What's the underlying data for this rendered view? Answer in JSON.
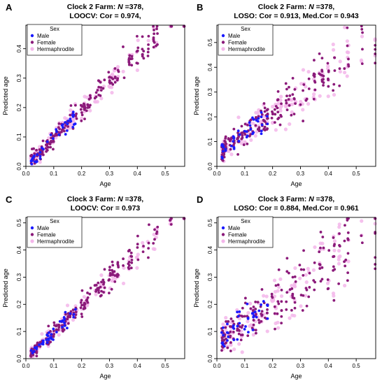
{
  "figure": {
    "colors": {
      "male": "#1a1aff",
      "female": "#8b1a7a",
      "hermaphrodite": "#f3b6ea",
      "axis": "#000000"
    }
  },
  "chart_data": [
    {
      "type": "scatter",
      "panel_letter": "A",
      "title_line1_prefix": "Clock 2 Farm: ",
      "title_n": "N",
      "title_line1_suffix": " =378,",
      "title_line2": "LOOCV: Cor = 0.974,",
      "xlabel": "Age",
      "ylabel": "Predicted age",
      "xlim": [
        0,
        0.57
      ],
      "ylim": [
        0,
        0.48
      ],
      "xticks": [
        0.0,
        0.1,
        0.2,
        0.3,
        0.4,
        0.5
      ],
      "yticks": [
        0.0,
        0.1,
        0.2,
        0.3,
        0.4
      ],
      "legend": {
        "title": "Sex",
        "entries": [
          "Male",
          "Female",
          "Hermaphrodite"
        ],
        "position": "top-left"
      },
      "model": {
        "type": "Clock 2",
        "noise": 0.025,
        "slope": 0.96,
        "compress": 0.0,
        "seed": 11
      },
      "series": [
        {
          "name": "Male",
          "n": 41
        },
        {
          "name": "Female",
          "n": 210
        },
        {
          "name": "Hermaphrodite",
          "n": 127
        }
      ]
    },
    {
      "type": "scatter",
      "panel_letter": "B",
      "title_line1_prefix": "Clock 2 Farm: ",
      "title_n": "N",
      "title_line1_suffix": " =378,",
      "title_line2": "LOSO: Cor = 0.913, Med.Cor = 0.943",
      "xlabel": "Age",
      "ylabel": "Predicted age",
      "xlim": [
        0,
        0.57
      ],
      "ylim": [
        0,
        0.57
      ],
      "xticks": [
        0.0,
        0.1,
        0.2,
        0.3,
        0.4,
        0.5
      ],
      "yticks": [
        0.0,
        0.1,
        0.2,
        0.3,
        0.4,
        0.5
      ],
      "legend": {
        "title": "Sex",
        "entries": [
          "Male",
          "Female",
          "Hermaphrodite"
        ],
        "position": "top-left"
      },
      "model": {
        "type": "Clock 2",
        "noise": 0.05,
        "slope": 0.8,
        "compress": 0.05,
        "seed": 23
      },
      "series": [
        {
          "name": "Male",
          "n": 41
        },
        {
          "name": "Female",
          "n": 210
        },
        {
          "name": "Hermaphrodite",
          "n": 127
        }
      ]
    },
    {
      "type": "scatter",
      "panel_letter": "C",
      "title_line1_prefix": "Clock 3 Farm: ",
      "title_n": "N",
      "title_line1_suffix": " =378,",
      "title_line2": "LOOCV: Cor = 0.973",
      "xlabel": "Age",
      "ylabel": "Predicted age",
      "xlim": [
        0,
        0.57
      ],
      "ylim": [
        0,
        0.52
      ],
      "xticks": [
        0.0,
        0.1,
        0.2,
        0.3,
        0.4,
        0.5
      ],
      "yticks": [
        0.0,
        0.1,
        0.2,
        0.3,
        0.4,
        0.5
      ],
      "legend": {
        "title": "Sex",
        "entries": [
          "Male",
          "Female",
          "Hermaphrodite"
        ],
        "position": "top-left"
      },
      "model": {
        "type": "Clock 3",
        "noise": 0.025,
        "slope": 0.98,
        "compress": 0.0,
        "seed": 37
      },
      "series": [
        {
          "name": "Male",
          "n": 41
        },
        {
          "name": "Female",
          "n": 210
        },
        {
          "name": "Hermaphrodite",
          "n": 127
        }
      ]
    },
    {
      "type": "scatter",
      "panel_letter": "D",
      "title_line1_prefix": "Clock 3 Farm: ",
      "title_n": "N",
      "title_line1_suffix": " =378,",
      "title_line2": "LOSO: Cor = 0.884, Med.Cor = 0.961",
      "xlabel": "Age",
      "ylabel": "Predicted age",
      "xlim": [
        0,
        0.57
      ],
      "ylim": [
        0,
        0.52
      ],
      "xticks": [
        0.0,
        0.1,
        0.2,
        0.3,
        0.4,
        0.5
      ],
      "yticks": [
        0.0,
        0.1,
        0.2,
        0.3,
        0.4,
        0.5
      ],
      "legend": {
        "title": "Sex",
        "entries": [
          "Male",
          "Female",
          "Hermaphrodite"
        ],
        "position": "top-left"
      },
      "model": {
        "type": "Clock 3",
        "noise": 0.065,
        "slope": 0.72,
        "compress": 0.06,
        "seed": 53
      },
      "series": [
        {
          "name": "Male",
          "n": 41
        },
        {
          "name": "Female",
          "n": 210
        },
        {
          "name": "Hermaphrodite",
          "n": 127
        }
      ]
    }
  ]
}
